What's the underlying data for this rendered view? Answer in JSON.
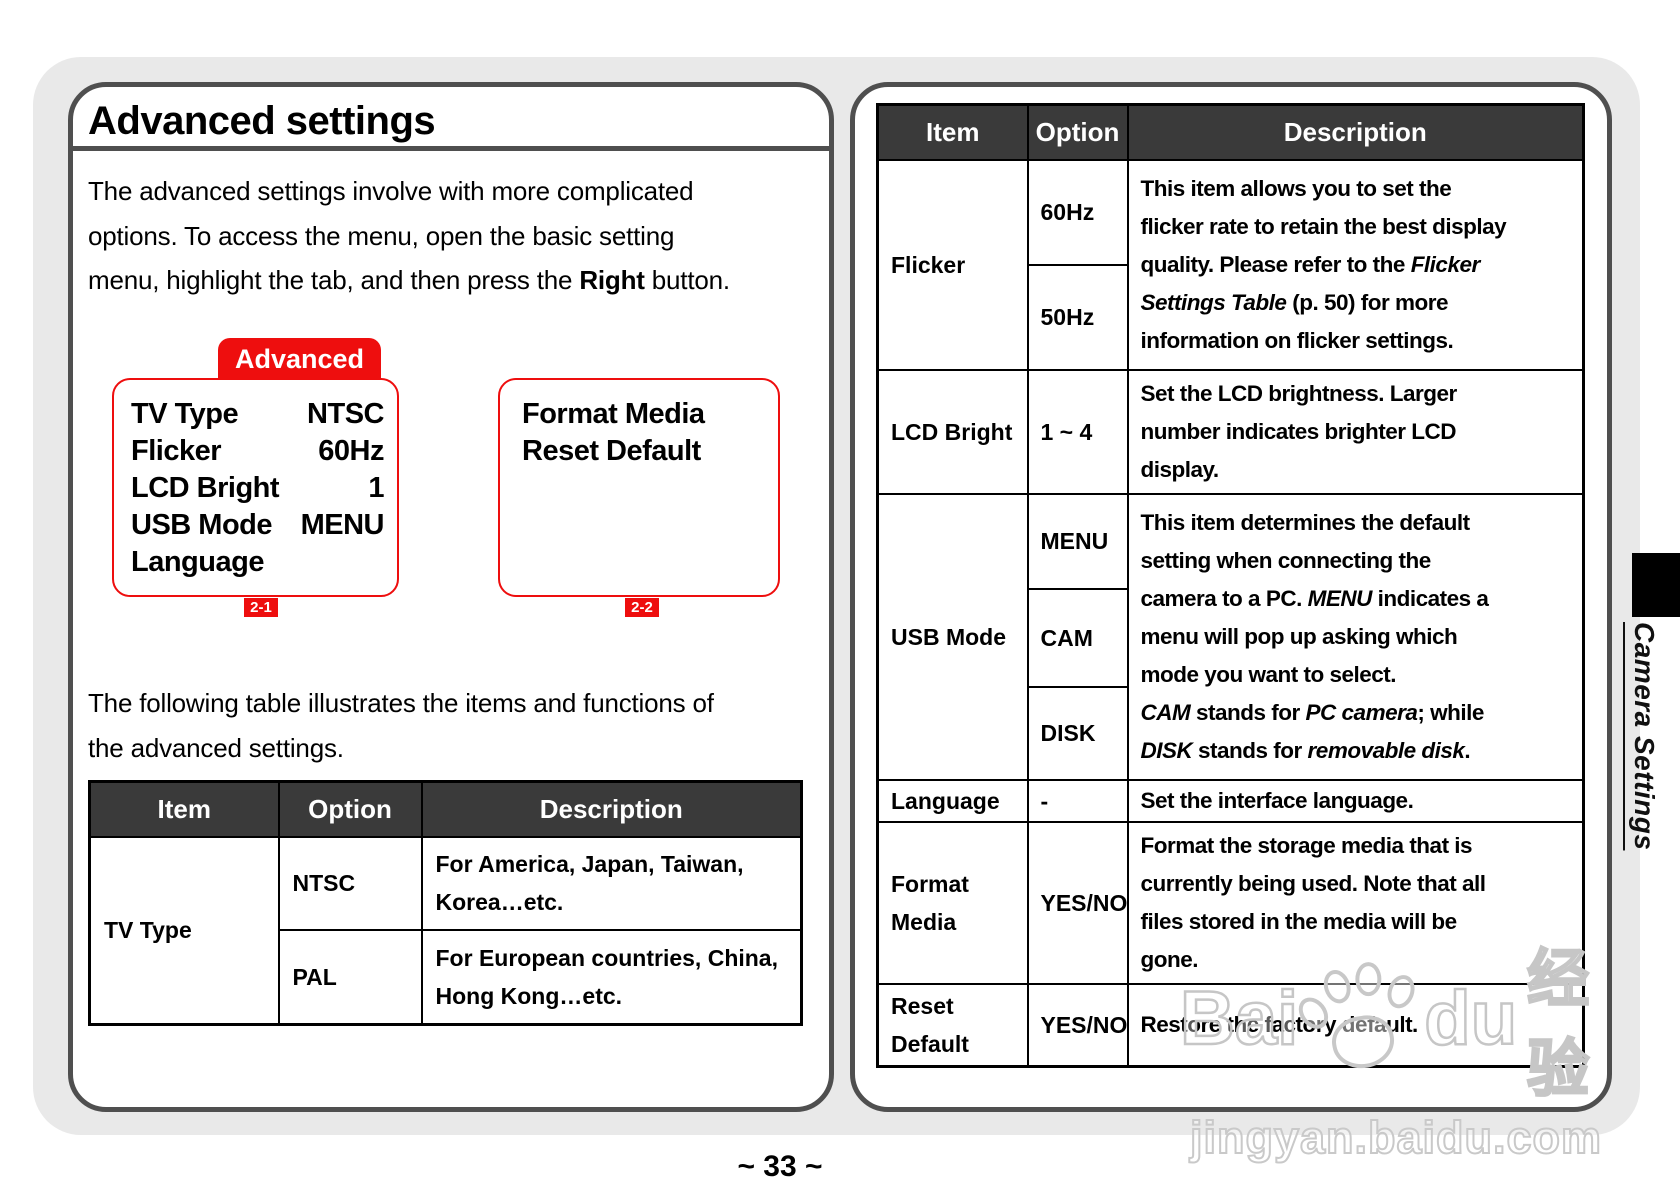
{
  "colors": {
    "accent_red": "#ee0e0e",
    "table_header_bg": "#3a3a3a",
    "page_background": "#e9e9e9",
    "panel_border": "#4f4f4f"
  },
  "page": {
    "number_label": "~ 33 ~",
    "side_tab_label": "Camera Settings"
  },
  "watermark": {
    "brand_left": "Bai",
    "brand_right": "du",
    "brand_cn": "经验",
    "url": "jingyan.baidu.com"
  },
  "left_panel": {
    "title": "Advanced settings",
    "intro_rich": [
      {
        "t": "The advanced settings involve with more complicated"
      },
      {
        "br": true
      },
      {
        "t": "options. To access the menu, open the basic setting"
      },
      {
        "br": true
      },
      {
        "t": "menu, highlight the tab, and then press the "
      },
      {
        "t": "Right",
        "b": true
      },
      {
        "t": " button."
      }
    ],
    "menu_screen_1": {
      "tab_label": "Advanced",
      "items": [
        {
          "label": "TV Type",
          "value": "NTSC"
        },
        {
          "label": "Flicker",
          "value": "60Hz"
        },
        {
          "label": "LCD Bright",
          "value": "1"
        },
        {
          "label": "USB Mode",
          "value": "MENU"
        },
        {
          "label": "Language",
          "value": ""
        }
      ],
      "figure_label": "2-1"
    },
    "menu_screen_2": {
      "items": [
        {
          "label": "Format Media"
        },
        {
          "label": "Reset Default"
        }
      ],
      "figure_label": "2-2"
    },
    "table_intro_rich": [
      {
        "t": "The following table illustrates the items and functions of"
      },
      {
        "br": true
      },
      {
        "t": "the advanced settings."
      }
    ],
    "tv_table": {
      "headers": [
        "Item",
        "Option",
        "Description"
      ],
      "item": "TV Type",
      "rows": [
        {
          "option": "NTSC",
          "description_rich": [
            {
              "t": "For America, Japan, Taiwan,"
            },
            {
              "br": true
            },
            {
              "t": "Korea…etc."
            }
          ]
        },
        {
          "option": "PAL",
          "description_rich": [
            {
              "t": "For European countries, China,"
            },
            {
              "br": true
            },
            {
              "t": "Hong Kong…etc."
            }
          ]
        }
      ]
    }
  },
  "right_panel": {
    "table": {
      "headers": [
        "Item",
        "Option",
        "Description"
      ],
      "flicker": {
        "item": "Flicker",
        "options": [
          "60Hz",
          "50Hz"
        ],
        "description_rich": [
          {
            "t": "This item allows you to set the"
          },
          {
            "br": true
          },
          {
            "t": "flicker rate to retain the best display"
          },
          {
            "br": true
          },
          {
            "t": "quality. Please refer to the "
          },
          {
            "t": "Flicker",
            "i": true
          },
          {
            "br": true
          },
          {
            "t": "Settings Table",
            "i": true
          },
          {
            "t": " (p. 50) for more"
          },
          {
            "br": true
          },
          {
            "t": "information on flicker settings."
          }
        ]
      },
      "lcd_bright": {
        "item": "LCD Bright",
        "option": "1 ~ 4",
        "description_rich": [
          {
            "t": "Set the LCD brightness. Larger"
          },
          {
            "br": true
          },
          {
            "t": "number indicates brighter LCD"
          },
          {
            "br": true
          },
          {
            "t": "display."
          }
        ]
      },
      "usb_mode": {
        "item": "USB Mode",
        "options": [
          "MENU",
          "CAM",
          "DISK"
        ],
        "description_rich": [
          {
            "t": "This item determines the default"
          },
          {
            "br": true
          },
          {
            "t": "setting when connecting the"
          },
          {
            "br": true
          },
          {
            "t": "camera to a PC. "
          },
          {
            "t": "MENU",
            "i": true
          },
          {
            "t": " indicates a"
          },
          {
            "br": true
          },
          {
            "t": "menu will pop up asking which"
          },
          {
            "br": true
          },
          {
            "t": "mode you want to select."
          },
          {
            "br": true
          },
          {
            "t": "CAM",
            "i": true
          },
          {
            "t": " stands for "
          },
          {
            "t": "PC camera",
            "i": true
          },
          {
            "t": "; while"
          },
          {
            "br": true
          },
          {
            "t": "DISK",
            "i": true
          },
          {
            "t": " stands for "
          },
          {
            "t": "removable disk",
            "i": true
          },
          {
            "t": "."
          }
        ]
      },
      "language": {
        "item": "Language",
        "option": "-",
        "description_rich": [
          {
            "t": "Set the interface language."
          }
        ]
      },
      "format_media": {
        "item": "Format Media",
        "option": "YES/NO",
        "description_rich": [
          {
            "t": "Format the storage media that is"
          },
          {
            "br": true
          },
          {
            "t": "currently being used. Note that all"
          },
          {
            "br": true
          },
          {
            "t": "files stored in the media will be"
          },
          {
            "br": true
          },
          {
            "t": "gone."
          }
        ]
      },
      "reset_default": {
        "item": "Reset Default",
        "option": "YES/NO",
        "description_rich": [
          {
            "t": "Restore the factory default."
          }
        ]
      }
    }
  }
}
